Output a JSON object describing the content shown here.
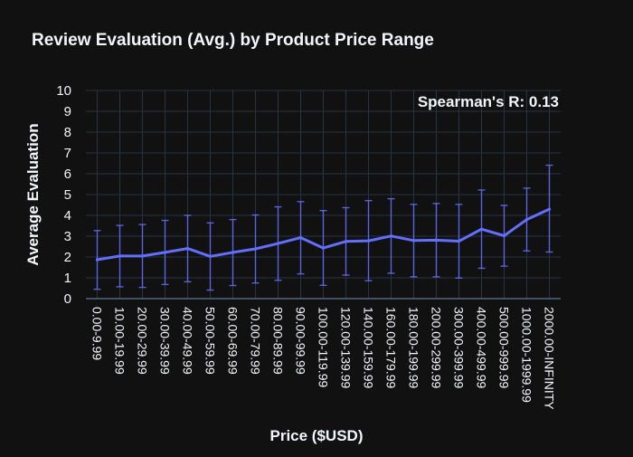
{
  "chart_data": {
    "type": "line",
    "title": "Review Evaluation (Avg.) by Product Price Range",
    "xlabel": "Price ($USD)",
    "ylabel": "Average Evaluation",
    "annotation": "Spearman's R: 0.13",
    "ylim": [
      0,
      10
    ],
    "yticks": [
      0,
      1,
      2,
      3,
      4,
      5,
      6,
      7,
      8,
      9,
      10
    ],
    "grid": true,
    "categories": [
      "0.00-9.99",
      "10.00-19.99",
      "20.00-29.99",
      "30.00-39.99",
      "40.00-49.99",
      "50.00-59.99",
      "60.00-69.99",
      "70.00-79.99",
      "80.00-89.99",
      "90.00-99.99",
      "100.00-119.99",
      "120.00-139.99",
      "140.00-159.99",
      "160.00-179.99",
      "180.00-199.99",
      "200.00-299.99",
      "300.00-399.99",
      "400.00-499.99",
      "500.00-999.99",
      "1000.00-1999.99",
      "2000.00-INFINITY"
    ],
    "series": [
      {
        "values": [
          1.87,
          2.05,
          2.05,
          2.22,
          2.41,
          2.03,
          2.22,
          2.39,
          2.65,
          2.93,
          2.43,
          2.75,
          2.78,
          3.01,
          2.79,
          2.81,
          2.76,
          3.34,
          3.02,
          3.8,
          4.3
        ],
        "error_upper": [
          3.27,
          3.52,
          3.56,
          3.76,
          4.0,
          3.64,
          3.8,
          4.02,
          4.41,
          4.66,
          4.23,
          4.37,
          4.71,
          4.8,
          4.53,
          4.57,
          4.53,
          5.22,
          4.48,
          5.31,
          6.41
        ],
        "error_lower": [
          0.45,
          0.57,
          0.54,
          0.68,
          0.81,
          0.41,
          0.63,
          0.75,
          0.88,
          1.19,
          0.64,
          1.13,
          0.86,
          1.22,
          1.05,
          1.05,
          0.99,
          1.46,
          1.56,
          2.29,
          2.24
        ]
      }
    ],
    "colors": {
      "background": "#111111",
      "grid": "#283442",
      "axis": "#506784",
      "line": "#636efa",
      "text": "#f2f5fa"
    }
  }
}
